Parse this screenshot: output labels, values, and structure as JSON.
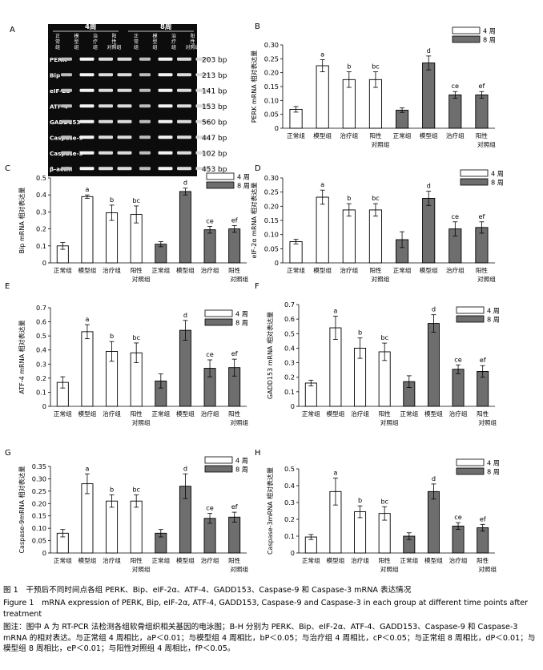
{
  "gel": {
    "panel_label": "A",
    "week_headers": [
      "4周",
      "8周"
    ],
    "group_headers": [
      [
        "正",
        "常",
        "组"
      ],
      [
        "模",
        "型",
        "组"
      ],
      [
        "治",
        "疗",
        "组"
      ],
      [
        "阳",
        "性",
        "对照组"
      ]
    ],
    "row_labels": [
      "PERK",
      "Bip",
      "eIF-2α",
      "ATF-4",
      "GADD153",
      "Caspase-9",
      "Caspase-3",
      "β-actin"
    ],
    "sizes": [
      "203 bp",
      "213 bp",
      "141 bp",
      "153 bp",
      "560 bp",
      "447 bp",
      "102 bp",
      "453 bp"
    ]
  },
  "legend_labels": [
    "4 周",
    "8 周"
  ],
  "group_labels": [
    [
      "正常组"
    ],
    [
      "模型组"
    ],
    [
      "治疗组"
    ],
    [
      "阳性",
      "对照组"
    ],
    [
      "正常组"
    ],
    [
      "模型组"
    ],
    [
      "治疗组"
    ],
    [
      "阳性",
      "对照组"
    ]
  ],
  "colors": {
    "week4": "#ffffff",
    "week8": "#6e6e6e",
    "stroke": "#000000"
  },
  "chart_data": [
    {
      "panel": "B",
      "type": "bar",
      "ylabel": "PERK mRNA 相对表达量",
      "ylim": [
        0,
        0.3
      ],
      "yticks": [
        "0",
        "0.05",
        "0.10",
        "0.15",
        "0.20",
        "0.25",
        "0.30"
      ],
      "series": [
        {
          "name": "4 周",
          "values": [
            0.068,
            0.225,
            0.175,
            0.175
          ],
          "errors": [
            0.01,
            0.022,
            0.028,
            0.028
          ]
        },
        {
          "name": "8 周",
          "values": [
            0.065,
            0.235,
            0.12,
            0.12
          ],
          "errors": [
            0.008,
            0.025,
            0.012,
            0.012
          ]
        }
      ],
      "annotations": [
        "",
        "a",
        "b",
        "bc",
        "",
        "d",
        "ce",
        "ef"
      ]
    },
    {
      "panel": "C",
      "type": "bar",
      "ylabel": "Bip mRNA 相对表达量",
      "ylim": [
        0,
        0.5
      ],
      "yticks": [
        "0",
        "0.1",
        "0.2",
        "0.3",
        "0.4",
        "0.5"
      ],
      "series": [
        {
          "name": "4 周",
          "values": [
            0.1,
            0.39,
            0.295,
            0.285
          ],
          "errors": [
            0.02,
            0.01,
            0.045,
            0.05
          ]
        },
        {
          "name": "8 周",
          "values": [
            0.11,
            0.42,
            0.195,
            0.2
          ],
          "errors": [
            0.015,
            0.02,
            0.02,
            0.02
          ]
        }
      ],
      "annotations": [
        "",
        "a",
        "b",
        "bc",
        "",
        "d",
        "ce",
        "ef"
      ]
    },
    {
      "panel": "D",
      "type": "bar",
      "ylabel": "eIF-2α mRNA 相对表达量",
      "ylim": [
        0,
        0.3
      ],
      "yticks": [
        "0",
        "0.05",
        "0.10",
        "0.15",
        "0.20",
        "0.25",
        "0.30"
      ],
      "series": [
        {
          "name": "4 周",
          "values": [
            0.075,
            0.232,
            0.187,
            0.187
          ],
          "errors": [
            0.008,
            0.025,
            0.022,
            0.022
          ]
        },
        {
          "name": "8 周",
          "values": [
            0.082,
            0.228,
            0.12,
            0.125
          ],
          "errors": [
            0.028,
            0.025,
            0.025,
            0.02
          ]
        }
      ],
      "annotations": [
        "",
        "a",
        "b",
        "bc",
        "",
        "d",
        "ce",
        "ef"
      ]
    },
    {
      "panel": "E",
      "type": "bar",
      "ylabel": "ATF-4 mRNA 相对表达量",
      "ylim": [
        0,
        0.7
      ],
      "yticks": [
        "0",
        "0.1",
        "0.2",
        "0.3",
        "0.4",
        "0.5",
        "0.6",
        "0.7"
      ],
      "series": [
        {
          "name": "4 周",
          "values": [
            0.17,
            0.53,
            0.39,
            0.38
          ],
          "errors": [
            0.04,
            0.05,
            0.07,
            0.07
          ]
        },
        {
          "name": "8 周",
          "values": [
            0.18,
            0.54,
            0.27,
            0.275
          ],
          "errors": [
            0.05,
            0.07,
            0.06,
            0.06
          ]
        }
      ],
      "annotations": [
        "",
        "a",
        "b",
        "bc",
        "",
        "d",
        "ce",
        "ef"
      ]
    },
    {
      "panel": "F",
      "type": "bar",
      "ylabel": "GADD153 mRNA 相对表达量",
      "ylim": [
        0,
        0.7
      ],
      "yticks": [
        "0",
        "0.1",
        "0.2",
        "0.3",
        "0.4",
        "0.5",
        "0.6",
        "0.7"
      ],
      "series": [
        {
          "name": "4 周",
          "values": [
            0.16,
            0.54,
            0.4,
            0.375
          ],
          "errors": [
            0.02,
            0.08,
            0.07,
            0.06
          ]
        },
        {
          "name": "8 周",
          "values": [
            0.17,
            0.57,
            0.255,
            0.24
          ],
          "errors": [
            0.04,
            0.06,
            0.03,
            0.04
          ]
        }
      ],
      "annotations": [
        "",
        "a",
        "b",
        "bc",
        "",
        "d",
        "ce",
        "ef"
      ]
    },
    {
      "panel": "G",
      "type": "bar",
      "ylabel": "Caspase-9mRNA 相对表达量",
      "ylim": [
        0,
        0.35
      ],
      "yticks": [
        "0",
        "0.05",
        "0.10",
        "0.15",
        "0.20",
        "0.25",
        "0.30",
        "0.35"
      ],
      "series": [
        {
          "name": "4 周",
          "values": [
            0.08,
            0.28,
            0.21,
            0.21
          ],
          "errors": [
            0.015,
            0.04,
            0.025,
            0.025
          ]
        },
        {
          "name": "8 周",
          "values": [
            0.08,
            0.27,
            0.14,
            0.145
          ],
          "errors": [
            0.015,
            0.05,
            0.02,
            0.02
          ]
        }
      ],
      "annotations": [
        "",
        "a",
        "b",
        "bc",
        "",
        "d",
        "ce",
        "ef"
      ]
    },
    {
      "panel": "H",
      "type": "bar",
      "ylabel": "Caspase-3mRNA 相对表达量",
      "ylim": [
        0,
        0.5
      ],
      "yticks": [
        "0",
        "0.1",
        "0.2",
        "0.3",
        "0.4",
        "0.5"
      ],
      "series": [
        {
          "name": "4 周",
          "values": [
            0.095,
            0.365,
            0.245,
            0.235
          ],
          "errors": [
            0.015,
            0.08,
            0.035,
            0.04
          ]
        },
        {
          "name": "8 周",
          "values": [
            0.1,
            0.365,
            0.16,
            0.15
          ],
          "errors": [
            0.02,
            0.045,
            0.02,
            0.02
          ]
        }
      ],
      "annotations": [
        "",
        "a",
        "b",
        "bc",
        "",
        "d",
        "ce",
        "ef"
      ]
    }
  ],
  "caption": {
    "cn_title": "图 1　干预后不同时间点各组 PERK、Bip、eIF-2α、ATF-4、GADD153、Caspase-9 和 Caspase-3 mRNA 表达情况",
    "en_title": "Figure 1　mRNA expression of PERK, Bip, eIF-2α, ATF-4, GADD153, Caspase-9 and Caspase-3 in each group at different time points after treatment",
    "note": "图注：图中 A 为 RT-PCR 法检测各组软骨组织相关基因的电泳图；B-H 分别为 PERK、Bip、eIF-2α、ATF-4、GADD153、Caspase-9 和 Caspase-3 mRNA 的相对表达。与正常组 4 周相比，aP＜0.01；与模型组 4 周相比，bP＜0.05；与治疗组 4 周相比，cP＜0.05；与正常组 8 周相比，dP＜0.01；与模型组 8 周相比，eP＜0.01；与阳性对照组 4 周相比，fP＜0.05。"
  }
}
